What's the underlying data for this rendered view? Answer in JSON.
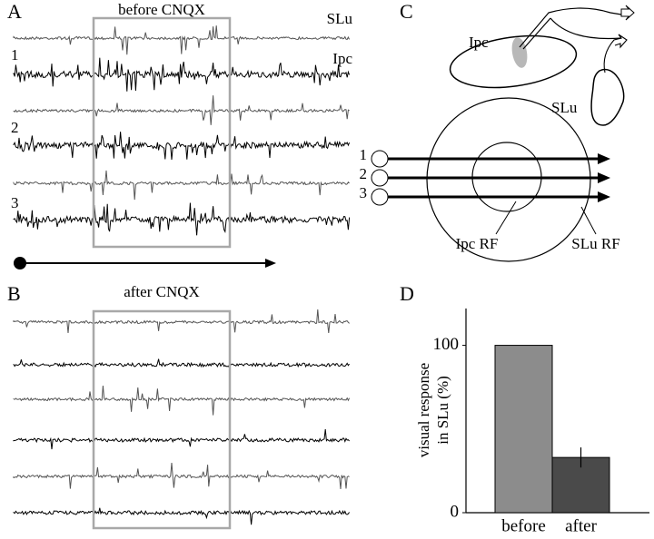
{
  "panel_a": {
    "label": "A",
    "title": "before CNQX",
    "trace_labels": [
      "SLu",
      "Ipc"
    ],
    "stimulus_numbers": [
      "1",
      "2",
      "3"
    ]
  },
  "panel_b": {
    "label": "B",
    "title": "after CNQX"
  },
  "panel_c": {
    "label": "C",
    "structures": [
      "Ipc",
      "SLu"
    ],
    "stimulus_numbers": [
      "1",
      "2",
      "3"
    ],
    "receptive_fields": [
      "Ipc RF",
      "SLu RF"
    ]
  },
  "chart_data": {
    "type": "bar",
    "label": "D",
    "y_label": [
      "visual response",
      "in SLu (%)"
    ],
    "categories": [
      "before",
      "after"
    ],
    "values": [
      100,
      33
    ],
    "errors": [
      null,
      6
    ],
    "colors": [
      "#8c8c8c",
      "#4a4a4a"
    ],
    "ylim": [
      0,
      122
    ],
    "yticks": [
      0,
      100
    ]
  }
}
